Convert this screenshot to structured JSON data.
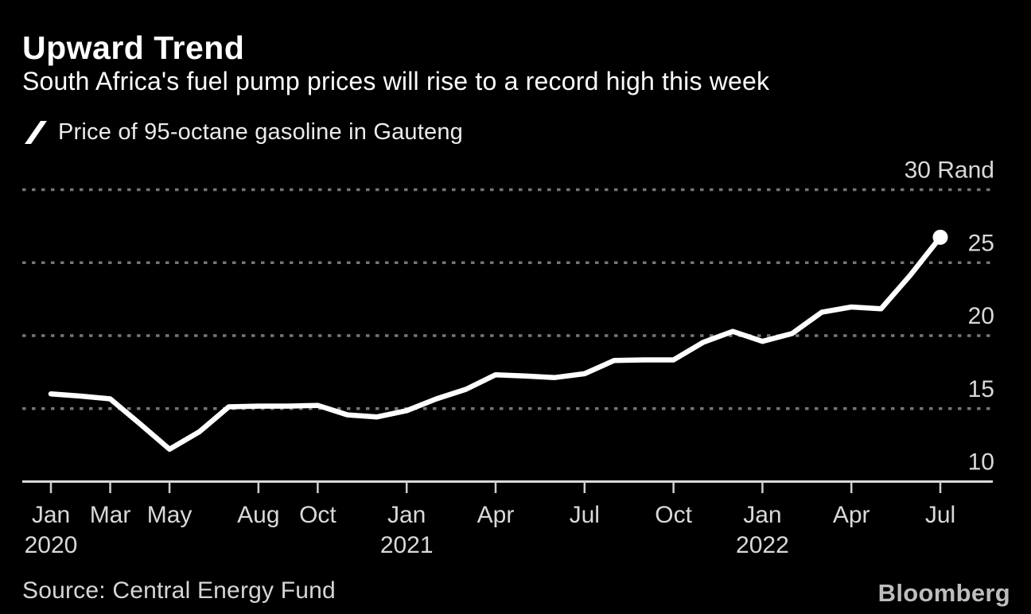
{
  "header": {
    "title": "Upward Trend",
    "subtitle": "South Africa's fuel pump prices will rise to a record high this week"
  },
  "legend": {
    "label": "Price of 95-octane gasoline in Gauteng"
  },
  "source": {
    "label": "Source: Central Energy Fund"
  },
  "branding": {
    "logo_text": "Bloomberg"
  },
  "colors": {
    "background": "#000000",
    "line": "#ffffff",
    "grid": "#757575",
    "axis": "#d9d9d9",
    "tick": "#cfcfcf",
    "axis_label": "#d9d9d9",
    "title": "#ffffff",
    "logo": "#bdbdbd"
  },
  "chart_data": {
    "type": "line",
    "title": "Upward Trend",
    "subtitle": "South Africa's fuel pump prices will rise to a record high this week",
    "series_name": "Price of 95-octane gasoline in Gauteng",
    "unit": "Rand",
    "x": [
      "Jan 2020",
      "Feb 2020",
      "Mar 2020",
      "Apr 2020",
      "May 2020",
      "Jun 2020",
      "Jul 2020",
      "Aug 2020",
      "Sep 2020",
      "Oct 2020",
      "Nov 2020",
      "Dec 2020",
      "Jan 2021",
      "Feb 2021",
      "Mar 2021",
      "Apr 2021",
      "May 2021",
      "Jun 2021",
      "Jul 2021",
      "Aug 2021",
      "Sep 2021",
      "Oct 2021",
      "Nov 2021",
      "Dec 2021",
      "Jan 2022",
      "Feb 2022",
      "Mar 2022",
      "Apr 2022",
      "May 2022",
      "Jun 2022",
      "Jul 2022"
    ],
    "values": [
      16.01,
      15.86,
      15.67,
      13.96,
      12.22,
      13.4,
      15.12,
      15.17,
      15.17,
      15.22,
      14.57,
      14.43,
      14.86,
      15.67,
      16.32,
      17.32,
      17.23,
      17.13,
      17.39,
      18.3,
      18.34,
      18.34,
      19.54,
      20.29,
      19.61,
      20.14,
      21.6,
      21.96,
      21.84,
      24.17,
      26.74
    ],
    "ylim": [
      10,
      31.6
    ],
    "yticks": [
      10,
      15,
      20,
      25,
      30
    ],
    "ytick_unit_suffix": " Rand",
    "ytick_unit_on": 30,
    "xticks": [
      {
        "i": 0,
        "label": "Jan",
        "year": "2020"
      },
      {
        "i": 2,
        "label": "Mar"
      },
      {
        "i": 4,
        "label": "May"
      },
      {
        "i": 7,
        "label": "Aug"
      },
      {
        "i": 9,
        "label": "Oct"
      },
      {
        "i": 12,
        "label": "Jan",
        "year": "2021"
      },
      {
        "i": 15,
        "label": "Apr"
      },
      {
        "i": 18,
        "label": "Jul"
      },
      {
        "i": 21,
        "label": "Oct"
      },
      {
        "i": 24,
        "label": "Jan",
        "year": "2022"
      },
      {
        "i": 27,
        "label": "Apr"
      },
      {
        "i": 30,
        "label": "Jul"
      }
    ],
    "grid": "horizontal-dotted",
    "legend_position": "top-left",
    "end_marker": true
  }
}
